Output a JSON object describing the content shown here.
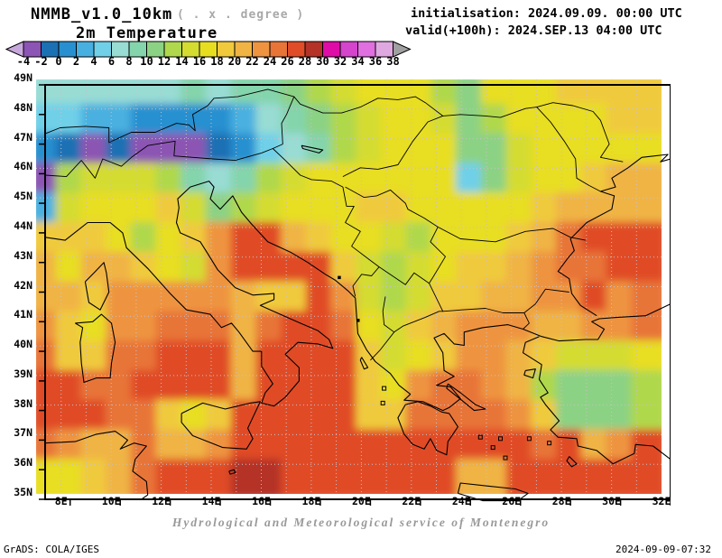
{
  "header": {
    "model_title": "NMMB_v1.0_10km",
    "model_note": "( . x . degree )",
    "field_title": "2m Temperature",
    "init_line": "initialisation: 2024.09.09. 00:00 UTC",
    "valid_line": "valid(+100h): 2024.SEP.13 04:00 UTC"
  },
  "colorbar": {
    "tick_labels": [
      "-4",
      "-2",
      "0",
      "2",
      "4",
      "6",
      "8",
      "10",
      "12",
      "14",
      "16",
      "18",
      "20",
      "22",
      "24",
      "26",
      "28",
      "30",
      "32",
      "34",
      "36",
      "38"
    ],
    "under_arrow_color": "#c8a8dc",
    "over_arrow_color": "#a0a0a0",
    "cell_colors": [
      "#8c54b4",
      "#1c70b4",
      "#2890d0",
      "#48b0e0",
      "#70d0e8",
      "#98dcd4",
      "#84d4ac",
      "#8cd284",
      "#b0d84c",
      "#d4dc30",
      "#e8de20",
      "#f0ca3c",
      "#f0b444",
      "#ee9440",
      "#e87438",
      "#e04c28",
      "#b43228",
      "#e00ca8",
      "#d444cc",
      "#e070e0",
      "#e0a8e0"
    ]
  },
  "axes": {
    "lat_labels": [
      "49N",
      "48N",
      "47N",
      "46N",
      "45N",
      "44N",
      "43N",
      "42N",
      "41N",
      "40N",
      "39N",
      "38N",
      "37N",
      "36N",
      "35N"
    ],
    "lon_labels": [
      "8E",
      "10E",
      "12E",
      "14E",
      "16E",
      "18E",
      "20E",
      "22E",
      "24E",
      "26E",
      "28E",
      "30E",
      "32E"
    ]
  },
  "chart_data": {
    "type": "heatmap",
    "title": "2m Temperature",
    "units": "degC",
    "lon_range": [
      7,
      32
    ],
    "lat_range": [
      35,
      49
    ],
    "cell_size_deg": 1,
    "palette_thresholds": [
      -4,
      -2,
      0,
      2,
      4,
      6,
      8,
      10,
      12,
      14,
      16,
      18,
      20,
      22,
      24,
      26,
      28,
      30,
      32,
      34,
      36,
      38
    ],
    "palette_colors": [
      "#c8a8dc",
      "#8c54b4",
      "#1c70b4",
      "#2890d0",
      "#48b0e0",
      "#70d0e8",
      "#98dcd4",
      "#84d4ac",
      "#8cd284",
      "#b0d84c",
      "#d4dc30",
      "#e8de20",
      "#f0ca3c",
      "#f0b444",
      "#ee9440",
      "#e87438",
      "#e04c28",
      "#b43228",
      "#e00ca8",
      "#d444cc",
      "#e070e0",
      "#e0a8e0",
      "#a0a0a0"
    ],
    "grid_encoding": "letters a-w index palette_colors; rows north(49N) to south(35N), cols west(7E) to east(32E), one char per 1x1 degree cell",
    "grid_rows_north_to_south": [
      "gggggghghhijkllljilllmmmm",
      "ffeeddddeghijkllkijllllmm",
      "dcbcbbbcdfghjkllliiklllll",
      "bjkkkjhghjkllllllfikllmnn",
      "eklllmkijklllmmlllllmnnnn",
      "mmmljlmoqqnmllkjlllmnpqqq",
      "nlnnmlkoqqqqmkjklmmnoppqq",
      "nnmooooonmmqokjkmmnnooqop",
      "omloopppnpqqplkmnooonnoop",
      "pmmppqqqnqqqqmklmoonmkkkl",
      "qqppqqqqnqqqqmlopponjiiij",
      "qqqppmlmqqqqqmmppppomiiij",
      "ponnpnnoqqqqqqqqqqqqpqnoq",
      "llmnpqqqrrqqqqqqqnnqqqqqq"
    ]
  },
  "footer": {
    "service_line": "Hydrological and Meteorological service of Montenegro",
    "grads_line": "GrADS: COLA/IGES",
    "created_line": "2024-09-09-07:32"
  }
}
